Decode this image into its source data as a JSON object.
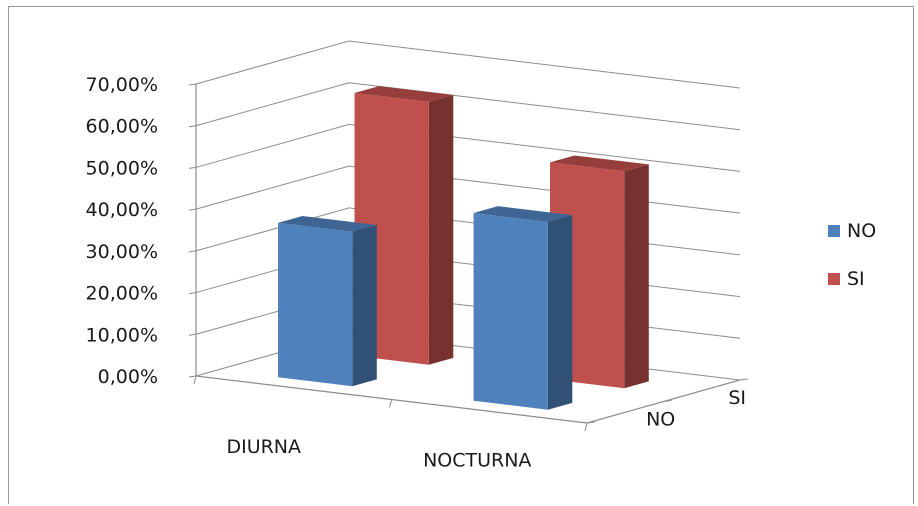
{
  "chart_data": {
    "type": "bar",
    "style": "3d-clustered-depth",
    "categories": [
      "DIURNA",
      "NOCTURNA"
    ],
    "depth_labels": [
      "SI",
      "NO"
    ],
    "y_ticks": [
      "70,00%",
      "60,00%",
      "50,00%",
      "40,00%",
      "30,00%",
      "20,00%",
      "10,00%",
      "0,00%"
    ],
    "ylim": [
      0,
      70
    ],
    "grid": true,
    "legend_position": "right",
    "series": [
      {
        "name": "NO",
        "color": "#4f81bd",
        "values": [
          37,
          45
        ]
      },
      {
        "name": "SI",
        "color": "#c0504d",
        "values": [
          63,
          52
        ]
      }
    ],
    "title": "",
    "xlabel": "",
    "ylabel": ""
  }
}
